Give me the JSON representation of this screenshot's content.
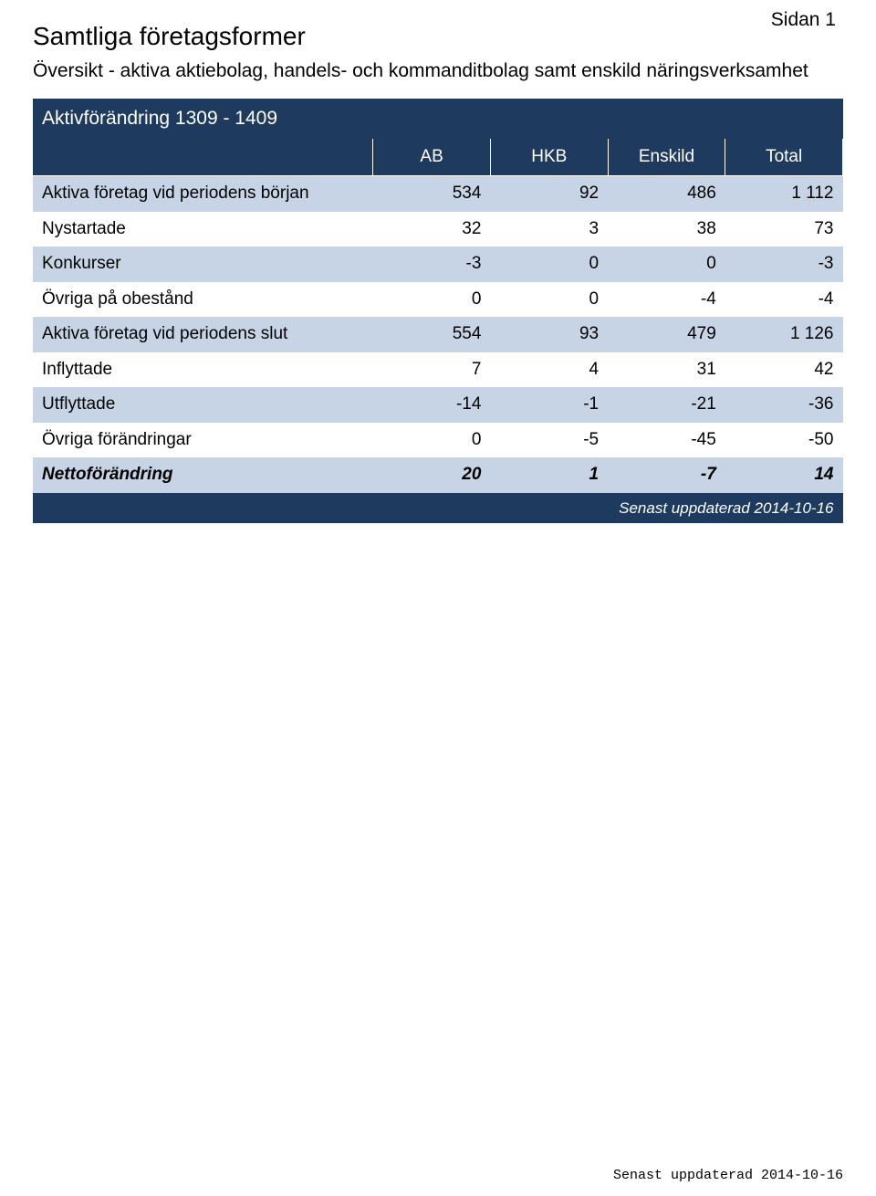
{
  "page_label": "Sidan 1",
  "title": "Samtliga företagsformer",
  "subtitle": "Översikt - aktiva aktiebolag, handels- och kommanditbolag samt enskild näringsverksamhet",
  "banner": "Aktivförändring 1309 - 1409",
  "columns": [
    "AB",
    "HKB",
    "Enskild",
    "Total"
  ],
  "rows": [
    {
      "label": "Aktiva företag vid periodens början",
      "values": [
        "534",
        "92",
        "486",
        "1 112"
      ],
      "shade": true,
      "netto": false
    },
    {
      "label": "Nystartade",
      "values": [
        "32",
        "3",
        "38",
        "73"
      ],
      "shade": false,
      "netto": false
    },
    {
      "label": "Konkurser",
      "values": [
        "-3",
        "0",
        "0",
        "-3"
      ],
      "shade": true,
      "netto": false
    },
    {
      "label": "Övriga på obestånd",
      "values": [
        "0",
        "0",
        "-4",
        "-4"
      ],
      "shade": false,
      "netto": false
    },
    {
      "label": "Aktiva företag vid periodens slut",
      "values": [
        "554",
        "93",
        "479",
        "1 126"
      ],
      "shade": true,
      "netto": false
    },
    {
      "label": "Inflyttade",
      "values": [
        "7",
        "4",
        "31",
        "42"
      ],
      "shade": false,
      "netto": false
    },
    {
      "label": "Utflyttade",
      "values": [
        "-14",
        "-1",
        "-21",
        "-36"
      ],
      "shade": true,
      "netto": false
    },
    {
      "label": "Övriga förändringar",
      "values": [
        "0",
        "-5",
        "-45",
        "-50"
      ],
      "shade": false,
      "netto": false
    },
    {
      "label": "Nettoförändring",
      "values": [
        "20",
        "1",
        "-7",
        "14"
      ],
      "shade": true,
      "netto": true
    }
  ],
  "footer_updated": "Senast uppdaterad 2014-10-16",
  "bottom_updated": "Senast uppdaterad 2014-10-16",
  "colors": {
    "header_bg": "#1e3a5f",
    "header_fg": "#ffffff",
    "shade_bg": "#c7d4e6",
    "page_bg": "#ffffff",
    "text": "#000000"
  }
}
